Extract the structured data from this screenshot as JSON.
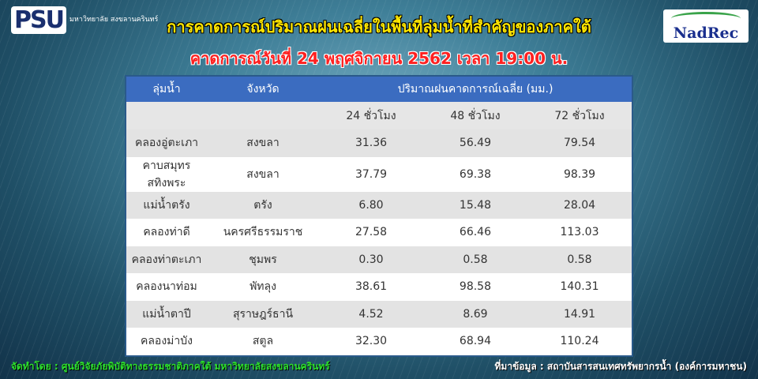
{
  "logos": {
    "psu": "PSU",
    "psu_text": "มหาวิทยาลัย สงขลานครินทร์",
    "nadrec": "NadRec"
  },
  "title": "การคาดการณ์ปริมาณฝนเฉลี่ยในพื้นที่ลุ่มน้ำที่สำคัญของภาคใต้",
  "subtitle": "คาดการณ์วันที่ 24 พฤศจิกายน 2562 เวลา 19:00 น.",
  "table": {
    "headers": {
      "basin": "ลุ่มน้ำ",
      "province": "จังหวัด",
      "rain": "ปริมาณฝนคาดการณ์เฉลี่ย (มม.)"
    },
    "subheaders": [
      "24 ชั่วโมง",
      "48 ชั่วโมง",
      "72 ชั่วโมง"
    ],
    "rows": [
      {
        "basin": "คลองอู่ตะเภา",
        "province": "สงขลา",
        "h24": "31.36",
        "h48": "56.49",
        "h72": "79.54"
      },
      {
        "basin": "คาบสมุทรสทิงพระ",
        "province": "สงขลา",
        "h24": "37.79",
        "h48": "69.38",
        "h72": "98.39"
      },
      {
        "basin": "แม่น้ำตรัง",
        "province": "ตรัง",
        "h24": "6.80",
        "h48": "15.48",
        "h72": "28.04"
      },
      {
        "basin": "คลองท่าดี",
        "province": "นครศรีธรรมราช",
        "h24": "27.58",
        "h48": "66.46",
        "h72": "113.03"
      },
      {
        "basin": "คลองท่าตะเภา",
        "province": "ชุมพร",
        "h24": "0.30",
        "h48": "0.58",
        "h72": "0.58"
      },
      {
        "basin": "คลองนาท่อม",
        "province": "พัทลุง",
        "h24": "38.61",
        "h48": "98.58",
        "h72": "140.31"
      },
      {
        "basin": "แม่น้ำตาปี",
        "province": "สุราษฎร์ธานี",
        "h24": "4.52",
        "h48": "8.69",
        "h72": "14.91"
      },
      {
        "basin": "คลองม่าบัง",
        "province": "สตูล",
        "h24": "32.30",
        "h48": "68.94",
        "h72": "110.24"
      }
    ]
  },
  "footer": {
    "left": "จัดทำโดย : ศูนย์วิจัยภัยพิบัติทางธรรมชาติภาคใต้ มหาวิทยาลัยสงขลานครินทร์",
    "right": "ที่มาข้อมูล : สถาบันสารสนเทศทรัพยากรน้ำ (องค์การมหาชน)"
  },
  "colors": {
    "header_bg": "#3b6cc0",
    "title": "#ffe600",
    "subtitle": "#ff2020",
    "footer_left": "#2de02d"
  }
}
